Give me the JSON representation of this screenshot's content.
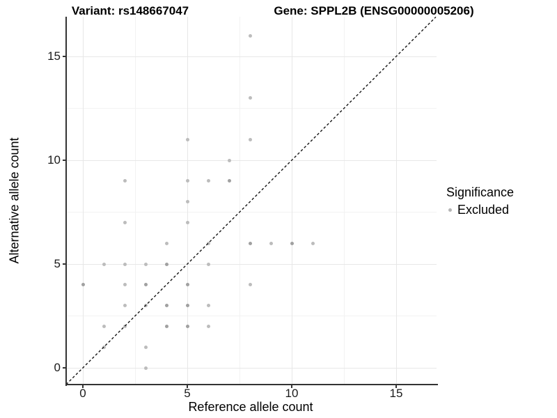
{
  "header": {
    "variant_title": "Variant: rs148667047",
    "gene_title": "Gene: SPPL2B (ENSG00000005206)"
  },
  "legend": {
    "title": "Significance",
    "items": [
      {
        "label": "Excluded",
        "marker_color": "#b5b5b5"
      }
    ]
  },
  "chart_data": {
    "type": "scatter",
    "title_left": "Variant: rs148667047",
    "title_right": "Gene: SPPL2B (ENSG00000005206)",
    "xlabel": "Reference allele count",
    "ylabel": "Alternative allele count",
    "xlim": [
      -0.8,
      16.9
    ],
    "ylim": [
      -0.8,
      16.9
    ],
    "x_major_ticks": [
      0,
      5,
      10,
      15
    ],
    "y_major_ticks": [
      0,
      5,
      10,
      15
    ],
    "x_minor_gridlines": [
      2.5,
      7.5,
      12.5
    ],
    "y_minor_gridlines": [
      2.5,
      7.5,
      12.5
    ],
    "grid": true,
    "legend_position": "right",
    "identity_line": {
      "style": "dashed",
      "equation": "y = x",
      "color": "#141414"
    },
    "marker_colors": {
      "light": "#bcbcbc",
      "dark": "#a0a0a0"
    },
    "series": [
      {
        "name": "Excluded",
        "marker": "circle",
        "points": [
          {
            "x": 8,
            "y": 16,
            "shade": "light"
          },
          {
            "x": 8,
            "y": 13,
            "shade": "light"
          },
          {
            "x": 5,
            "y": 11,
            "shade": "light"
          },
          {
            "x": 8,
            "y": 11,
            "shade": "light"
          },
          {
            "x": 7,
            "y": 10,
            "shade": "light"
          },
          {
            "x": 2,
            "y": 9,
            "shade": "light"
          },
          {
            "x": 5,
            "y": 9,
            "shade": "light"
          },
          {
            "x": 6,
            "y": 9,
            "shade": "light"
          },
          {
            "x": 7,
            "y": 9,
            "shade": "dark"
          },
          {
            "x": 5,
            "y": 8,
            "shade": "light"
          },
          {
            "x": 2,
            "y": 7,
            "shade": "light"
          },
          {
            "x": 5,
            "y": 7,
            "shade": "light"
          },
          {
            "x": 4,
            "y": 6,
            "shade": "light"
          },
          {
            "x": 6,
            "y": 6,
            "shade": "light"
          },
          {
            "x": 8,
            "y": 6,
            "shade": "dark"
          },
          {
            "x": 9,
            "y": 6,
            "shade": "light"
          },
          {
            "x": 10,
            "y": 6,
            "shade": "dark"
          },
          {
            "x": 11,
            "y": 6,
            "shade": "light"
          },
          {
            "x": 1,
            "y": 5,
            "shade": "light"
          },
          {
            "x": 2,
            "y": 5,
            "shade": "light"
          },
          {
            "x": 3,
            "y": 5,
            "shade": "light"
          },
          {
            "x": 4,
            "y": 5,
            "shade": "dark"
          },
          {
            "x": 6,
            "y": 5,
            "shade": "light"
          },
          {
            "x": 0,
            "y": 4,
            "shade": "dark"
          },
          {
            "x": 2,
            "y": 4,
            "shade": "light"
          },
          {
            "x": 3,
            "y": 4,
            "shade": "dark"
          },
          {
            "x": 5,
            "y": 4,
            "shade": "dark"
          },
          {
            "x": 8,
            "y": 4,
            "shade": "light"
          },
          {
            "x": 2,
            "y": 3,
            "shade": "light"
          },
          {
            "x": 3,
            "y": 3,
            "shade": "light"
          },
          {
            "x": 4,
            "y": 3,
            "shade": "dark"
          },
          {
            "x": 5,
            "y": 3,
            "shade": "dark"
          },
          {
            "x": 6,
            "y": 3,
            "shade": "light"
          },
          {
            "x": 1,
            "y": 2,
            "shade": "light"
          },
          {
            "x": 2,
            "y": 2,
            "shade": "light"
          },
          {
            "x": 4,
            "y": 2,
            "shade": "dark"
          },
          {
            "x": 5,
            "y": 2,
            "shade": "dark"
          },
          {
            "x": 6,
            "y": 2,
            "shade": "light"
          },
          {
            "x": 1,
            "y": 1,
            "shade": "light"
          },
          {
            "x": 3,
            "y": 1,
            "shade": "light"
          },
          {
            "x": 3,
            "y": 0,
            "shade": "light"
          }
        ]
      }
    ]
  }
}
